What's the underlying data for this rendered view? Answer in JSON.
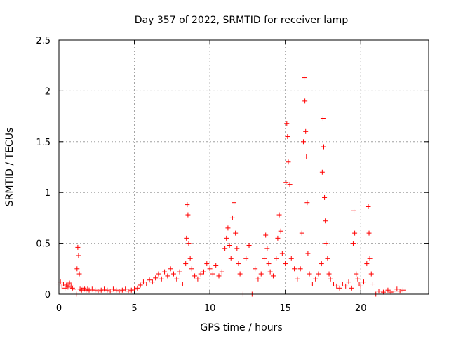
{
  "chart_data": {
    "type": "scatter",
    "title": "Day 357 of 2022, SRMTID for receiver lamp",
    "xlabel": "GPS time / hours",
    "ylabel": "SRMTID / TECUs",
    "xlim": [
      0,
      24.5
    ],
    "ylim": [
      0,
      2.5
    ],
    "xticks": [
      0,
      5,
      10,
      15,
      20
    ],
    "xtick_labels": [
      "0",
      "5",
      "10",
      "15",
      "20"
    ],
    "yticks": [
      0,
      0.5,
      1,
      1.5,
      2,
      2.5
    ],
    "ytick_labels": [
      "0",
      "0.5",
      "1",
      "1.5",
      "2",
      "2.5"
    ],
    "grid": true,
    "marker": "+",
    "color": "#ff0000",
    "series": [
      {
        "name": "SRMTID",
        "x": [
          0.0,
          0.1,
          0.2,
          0.3,
          0.4,
          0.5,
          0.6,
          0.7,
          0.8,
          0.9,
          1.0,
          1.15,
          1.2,
          1.25,
          1.3,
          1.35,
          1.4,
          1.5,
          1.6,
          1.7,
          1.8,
          1.9,
          2.0,
          2.2,
          2.4,
          2.6,
          2.8,
          3.0,
          3.2,
          3.4,
          3.6,
          3.8,
          4.0,
          4.2,
          4.4,
          4.6,
          4.8,
          5.0,
          5.2,
          5.4,
          5.6,
          5.8,
          6.0,
          6.2,
          6.4,
          6.6,
          6.8,
          7.0,
          7.2,
          7.4,
          7.6,
          7.8,
          8.0,
          8.2,
          8.4,
          8.45,
          8.5,
          8.55,
          8.6,
          8.7,
          8.8,
          9.0,
          9.2,
          9.4,
          9.6,
          9.8,
          10.0,
          10.2,
          10.4,
          10.6,
          10.8,
          11.0,
          11.1,
          11.2,
          11.3,
          11.4,
          11.5,
          11.6,
          11.7,
          11.8,
          11.9,
          12.0,
          12.2,
          12.4,
          12.6,
          12.8,
          13.0,
          13.2,
          13.4,
          13.6,
          13.7,
          13.8,
          13.9,
          14.0,
          14.2,
          14.4,
          14.5,
          14.6,
          14.7,
          14.8,
          15.0,
          15.05,
          15.1,
          15.15,
          15.2,
          15.3,
          15.4,
          15.6,
          15.8,
          16.0,
          16.1,
          16.2,
          16.25,
          16.3,
          16.35,
          16.4,
          16.45,
          16.5,
          16.6,
          16.8,
          17.0,
          17.2,
          17.4,
          17.45,
          17.5,
          17.55,
          17.6,
          17.65,
          17.7,
          17.8,
          17.9,
          18.0,
          18.2,
          18.4,
          18.6,
          18.8,
          19.0,
          19.2,
          19.4,
          19.5,
          19.55,
          19.6,
          19.7,
          19.8,
          19.9,
          20.0,
          20.2,
          20.4,
          20.5,
          20.55,
          20.6,
          20.7,
          20.8,
          21.0,
          21.2,
          21.5,
          21.8,
          22.0,
          22.2,
          22.4,
          22.6,
          22.8
        ],
        "values": [
          0.1,
          0.12,
          0.08,
          0.1,
          0.06,
          0.09,
          0.07,
          0.11,
          0.08,
          0.06,
          0.05,
          0.0,
          0.25,
          0.46,
          0.38,
          0.2,
          0.05,
          0.04,
          0.06,
          0.05,
          0.04,
          0.05,
          0.04,
          0.05,
          0.04,
          0.03,
          0.04,
          0.05,
          0.04,
          0.03,
          0.05,
          0.04,
          0.03,
          0.04,
          0.05,
          0.03,
          0.04,
          0.05,
          0.06,
          0.09,
          0.12,
          0.1,
          0.14,
          0.12,
          0.16,
          0.2,
          0.15,
          0.22,
          0.18,
          0.25,
          0.2,
          0.15,
          0.22,
          0.1,
          0.3,
          0.55,
          0.88,
          0.78,
          0.5,
          0.35,
          0.25,
          0.18,
          0.15,
          0.2,
          0.22,
          0.3,
          0.25,
          0.2,
          0.28,
          0.18,
          0.22,
          0.45,
          0.55,
          0.65,
          0.48,
          0.35,
          0.75,
          0.9,
          0.6,
          0.45,
          0.3,
          0.2,
          0.0,
          0.35,
          0.48,
          0.0,
          0.25,
          0.15,
          0.2,
          0.35,
          0.58,
          0.45,
          0.3,
          0.22,
          0.18,
          0.35,
          0.55,
          0.78,
          0.62,
          0.4,
          0.3,
          1.1,
          1.68,
          1.55,
          1.3,
          1.08,
          0.35,
          0.25,
          0.15,
          0.25,
          0.6,
          1.5,
          2.13,
          1.9,
          1.6,
          1.35,
          0.9,
          0.4,
          0.2,
          0.1,
          0.15,
          0.2,
          0.3,
          1.2,
          1.73,
          1.45,
          0.95,
          0.72,
          0.5,
          0.35,
          0.2,
          0.15,
          0.1,
          0.08,
          0.06,
          0.1,
          0.08,
          0.12,
          0.06,
          0.5,
          0.82,
          0.6,
          0.2,
          0.15,
          0.1,
          0.08,
          0.12,
          0.3,
          0.86,
          0.6,
          0.35,
          0.2,
          0.1,
          0.0,
          0.03,
          0.02,
          0.04,
          0.02,
          0.03,
          0.05,
          0.03,
          0.04
        ]
      }
    ]
  }
}
